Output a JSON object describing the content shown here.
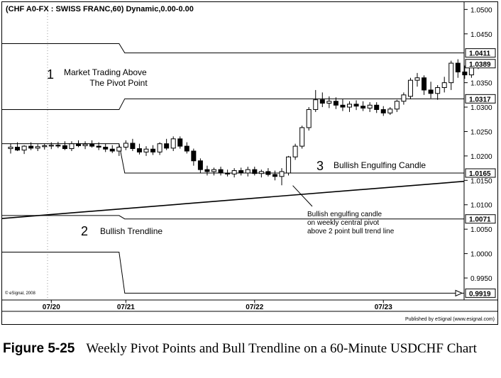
{
  "header_text": "(CHF A0-FX : SWISS FRANC,60) Dynamic,0.00-0.00",
  "copyright_text": "© eSignal, 2008",
  "publisher_text": "Published by eSignal (www.esignal.com)",
  "caption": {
    "figure_number": "Figure 5-25",
    "text": "Weekly Pivot Points and Bull Trendline on a 60-Minute USDCHF Chart"
  },
  "chart_data": {
    "type": "candlestick",
    "ylim": [
      0.9905,
      1.0515
    ],
    "y_ticks": [
      "1.0500",
      "1.0450",
      "1.0350",
      "1.0300",
      "1.0250",
      "1.0200",
      "1.0150",
      "1.0100",
      "1.0050",
      "1.0000",
      "0.9950"
    ],
    "x_ticks": [
      {
        "label": "07/20",
        "index": 6
      },
      {
        "label": "07/21",
        "index": 17
      },
      {
        "label": "07/22",
        "index": 36
      },
      {
        "label": "07/23",
        "index": 55
      }
    ],
    "price_tags": [
      {
        "value": 1.0411,
        "label": "1.0411"
      },
      {
        "value": 1.0389,
        "label": "1.0389"
      },
      {
        "value": 1.0317,
        "label": "1.0317"
      },
      {
        "value": 1.0165,
        "label": "1.0165"
      },
      {
        "value": 1.0071,
        "label": "1.0071"
      },
      {
        "value": 0.9919,
        "label": "0.9919"
      }
    ],
    "pivot_levels": {
      "step_index": 16,
      "prior_week": [
        1.043,
        1.0295,
        1.0225,
        1.0078,
        1.0003
      ],
      "current_week": [
        1.0411,
        1.0317,
        1.0165,
        1.0071,
        0.9919
      ]
    },
    "trendline": {
      "start_index": 0,
      "start_value": 1.0072,
      "end_index": 64,
      "end_value": 1.0148
    },
    "candles": [
      {
        "o": 1.0215,
        "h": 1.0225,
        "l": 1.0205,
        "c": 1.0218
      },
      {
        "o": 1.0218,
        "h": 1.0228,
        "l": 1.021,
        "c": 1.0212
      },
      {
        "o": 1.0212,
        "h": 1.0222,
        "l": 1.0204,
        "c": 1.022
      },
      {
        "o": 1.022,
        "h": 1.0228,
        "l": 1.0212,
        "c": 1.0216
      },
      {
        "o": 1.0216,
        "h": 1.0224,
        "l": 1.021,
        "c": 1.0219
      },
      {
        "o": 1.0219,
        "h": 1.0225,
        "l": 1.0213,
        "c": 1.0221
      },
      {
        "o": 1.0221,
        "h": 1.0228,
        "l": 1.0214,
        "c": 1.0222
      },
      {
        "o": 1.0222,
        "h": 1.0229,
        "l": 1.0216,
        "c": 1.0221
      },
      {
        "o": 1.0221,
        "h": 1.023,
        "l": 1.0212,
        "c": 1.0215
      },
      {
        "o": 1.0215,
        "h": 1.023,
        "l": 1.021,
        "c": 1.0225
      },
      {
        "o": 1.0225,
        "h": 1.0232,
        "l": 1.0218,
        "c": 1.0221
      },
      {
        "o": 1.0221,
        "h": 1.023,
        "l": 1.0214,
        "c": 1.0224
      },
      {
        "o": 1.0224,
        "h": 1.0232,
        "l": 1.0217,
        "c": 1.022
      },
      {
        "o": 1.022,
        "h": 1.0228,
        "l": 1.0212,
        "c": 1.0218
      },
      {
        "o": 1.0218,
        "h": 1.0225,
        "l": 1.0208,
        "c": 1.0214
      },
      {
        "o": 1.0214,
        "h": 1.0222,
        "l": 1.0206,
        "c": 1.021
      },
      {
        "o": 1.021,
        "h": 1.0225,
        "l": 1.02,
        "c": 1.0218
      },
      {
        "o": 1.0218,
        "h": 1.0232,
        "l": 1.0212,
        "c": 1.0226
      },
      {
        "o": 1.0226,
        "h": 1.0235,
        "l": 1.021,
        "c": 1.0215
      },
      {
        "o": 1.0215,
        "h": 1.0225,
        "l": 1.0203,
        "c": 1.0208
      },
      {
        "o": 1.0208,
        "h": 1.022,
        "l": 1.02,
        "c": 1.0214
      },
      {
        "o": 1.0214,
        "h": 1.0222,
        "l": 1.0202,
        "c": 1.0208
      },
      {
        "o": 1.0208,
        "h": 1.0228,
        "l": 1.0202,
        "c": 1.0225
      },
      {
        "o": 1.0225,
        "h": 1.0235,
        "l": 1.0212,
        "c": 1.0216
      },
      {
        "o": 1.0216,
        "h": 1.024,
        "l": 1.021,
        "c": 1.0235
      },
      {
        "o": 1.0235,
        "h": 1.024,
        "l": 1.0215,
        "c": 1.022
      },
      {
        "o": 1.022,
        "h": 1.0228,
        "l": 1.0205,
        "c": 1.021
      },
      {
        "o": 1.021,
        "h": 1.0215,
        "l": 1.018,
        "c": 1.019
      },
      {
        "o": 1.019,
        "h": 1.0195,
        "l": 1.0165,
        "c": 1.0172
      },
      {
        "o": 1.0172,
        "h": 1.018,
        "l": 1.016,
        "c": 1.0168
      },
      {
        "o": 1.0168,
        "h": 1.0176,
        "l": 1.016,
        "c": 1.0172
      },
      {
        "o": 1.0172,
        "h": 1.0178,
        "l": 1.016,
        "c": 1.0165
      },
      {
        "o": 1.0165,
        "h": 1.0172,
        "l": 1.0158,
        "c": 1.0163
      },
      {
        "o": 1.0163,
        "h": 1.0175,
        "l": 1.0156,
        "c": 1.017
      },
      {
        "o": 1.017,
        "h": 1.0176,
        "l": 1.016,
        "c": 1.0165
      },
      {
        "o": 1.0165,
        "h": 1.0178,
        "l": 1.0158,
        "c": 1.0172
      },
      {
        "o": 1.0172,
        "h": 1.0178,
        "l": 1.016,
        "c": 1.0164
      },
      {
        "o": 1.0164,
        "h": 1.0172,
        "l": 1.0156,
        "c": 1.0168
      },
      {
        "o": 1.0168,
        "h": 1.0175,
        "l": 1.0158,
        "c": 1.0162
      },
      {
        "o": 1.0162,
        "h": 1.017,
        "l": 1.015,
        "c": 1.0158
      },
      {
        "o": 1.0158,
        "h": 1.0175,
        "l": 1.014,
        "c": 1.0168
      },
      {
        "o": 1.0165,
        "h": 1.02,
        "l": 1.016,
        "c": 1.0198
      },
      {
        "o": 1.0198,
        "h": 1.0225,
        "l": 1.0192,
        "c": 1.022
      },
      {
        "o": 1.022,
        "h": 1.0262,
        "l": 1.0215,
        "c": 1.0258
      },
      {
        "o": 1.0258,
        "h": 1.03,
        "l": 1.0252,
        "c": 1.0295
      },
      {
        "o": 1.0295,
        "h": 1.0335,
        "l": 1.029,
        "c": 1.0315
      },
      {
        "o": 1.0315,
        "h": 1.033,
        "l": 1.03,
        "c": 1.0308
      },
      {
        "o": 1.0308,
        "h": 1.0322,
        "l": 1.0298,
        "c": 1.0312
      },
      {
        "o": 1.0312,
        "h": 1.032,
        "l": 1.0296,
        "c": 1.0304
      },
      {
        "o": 1.0304,
        "h": 1.0316,
        "l": 1.0292,
        "c": 1.03
      },
      {
        "o": 1.03,
        "h": 1.0312,
        "l": 1.029,
        "c": 1.0306
      },
      {
        "o": 1.0306,
        "h": 1.0314,
        "l": 1.0294,
        "c": 1.0302
      },
      {
        "o": 1.0302,
        "h": 1.0312,
        "l": 1.0292,
        "c": 1.0298
      },
      {
        "o": 1.0298,
        "h": 1.031,
        "l": 1.029,
        "c": 1.0304
      },
      {
        "o": 1.0304,
        "h": 1.031,
        "l": 1.0288,
        "c": 1.0295
      },
      {
        "o": 1.0295,
        "h": 1.0302,
        "l": 1.0282,
        "c": 1.0288
      },
      {
        "o": 1.0288,
        "h": 1.03,
        "l": 1.0284,
        "c": 1.0296
      },
      {
        "o": 1.0296,
        "h": 1.0315,
        "l": 1.029,
        "c": 1.0312
      },
      {
        "o": 1.0312,
        "h": 1.033,
        "l": 1.0305,
        "c": 1.0325
      },
      {
        "o": 1.0322,
        "h": 1.036,
        "l": 1.0316,
        "c": 1.0355
      },
      {
        "o": 1.0355,
        "h": 1.037,
        "l": 1.0342,
        "c": 1.036
      },
      {
        "o": 1.036,
        "h": 1.0365,
        "l": 1.0325,
        "c": 1.0335
      },
      {
        "o": 1.0335,
        "h": 1.0352,
        "l": 1.0318,
        "c": 1.0328
      },
      {
        "o": 1.0328,
        "h": 1.0345,
        "l": 1.0315,
        "c": 1.034
      },
      {
        "o": 1.034,
        "h": 1.0362,
        "l": 1.033,
        "c": 1.035
      },
      {
        "o": 1.035,
        "h": 1.0395,
        "l": 1.0335,
        "c": 1.039
      },
      {
        "o": 1.039,
        "h": 1.0398,
        "l": 1.036,
        "c": 1.0372
      },
      {
        "o": 1.0372,
        "h": 1.0385,
        "l": 1.0358,
        "c": 1.0366
      },
      {
        "o": 1.0366,
        "h": 1.0392,
        "l": 1.036,
        "c": 1.0385
      },
      {
        "o": 1.0382,
        "h": 1.0398,
        "l": 1.0378,
        "c": 1.0389
      }
    ],
    "annotations": [
      {
        "number": "1",
        "text": [
          "Market Trading Above",
          "The Pivot Point"
        ]
      },
      {
        "number": "2",
        "text": [
          "Bullish Trendline"
        ]
      },
      {
        "number": "3",
        "text": [
          "Bullish Engulfing Candle"
        ]
      },
      {
        "number": "",
        "text": [
          "Bullish engulfing candle",
          "on weekly central pivot",
          "above 2 point bull trend line"
        ]
      }
    ]
  }
}
